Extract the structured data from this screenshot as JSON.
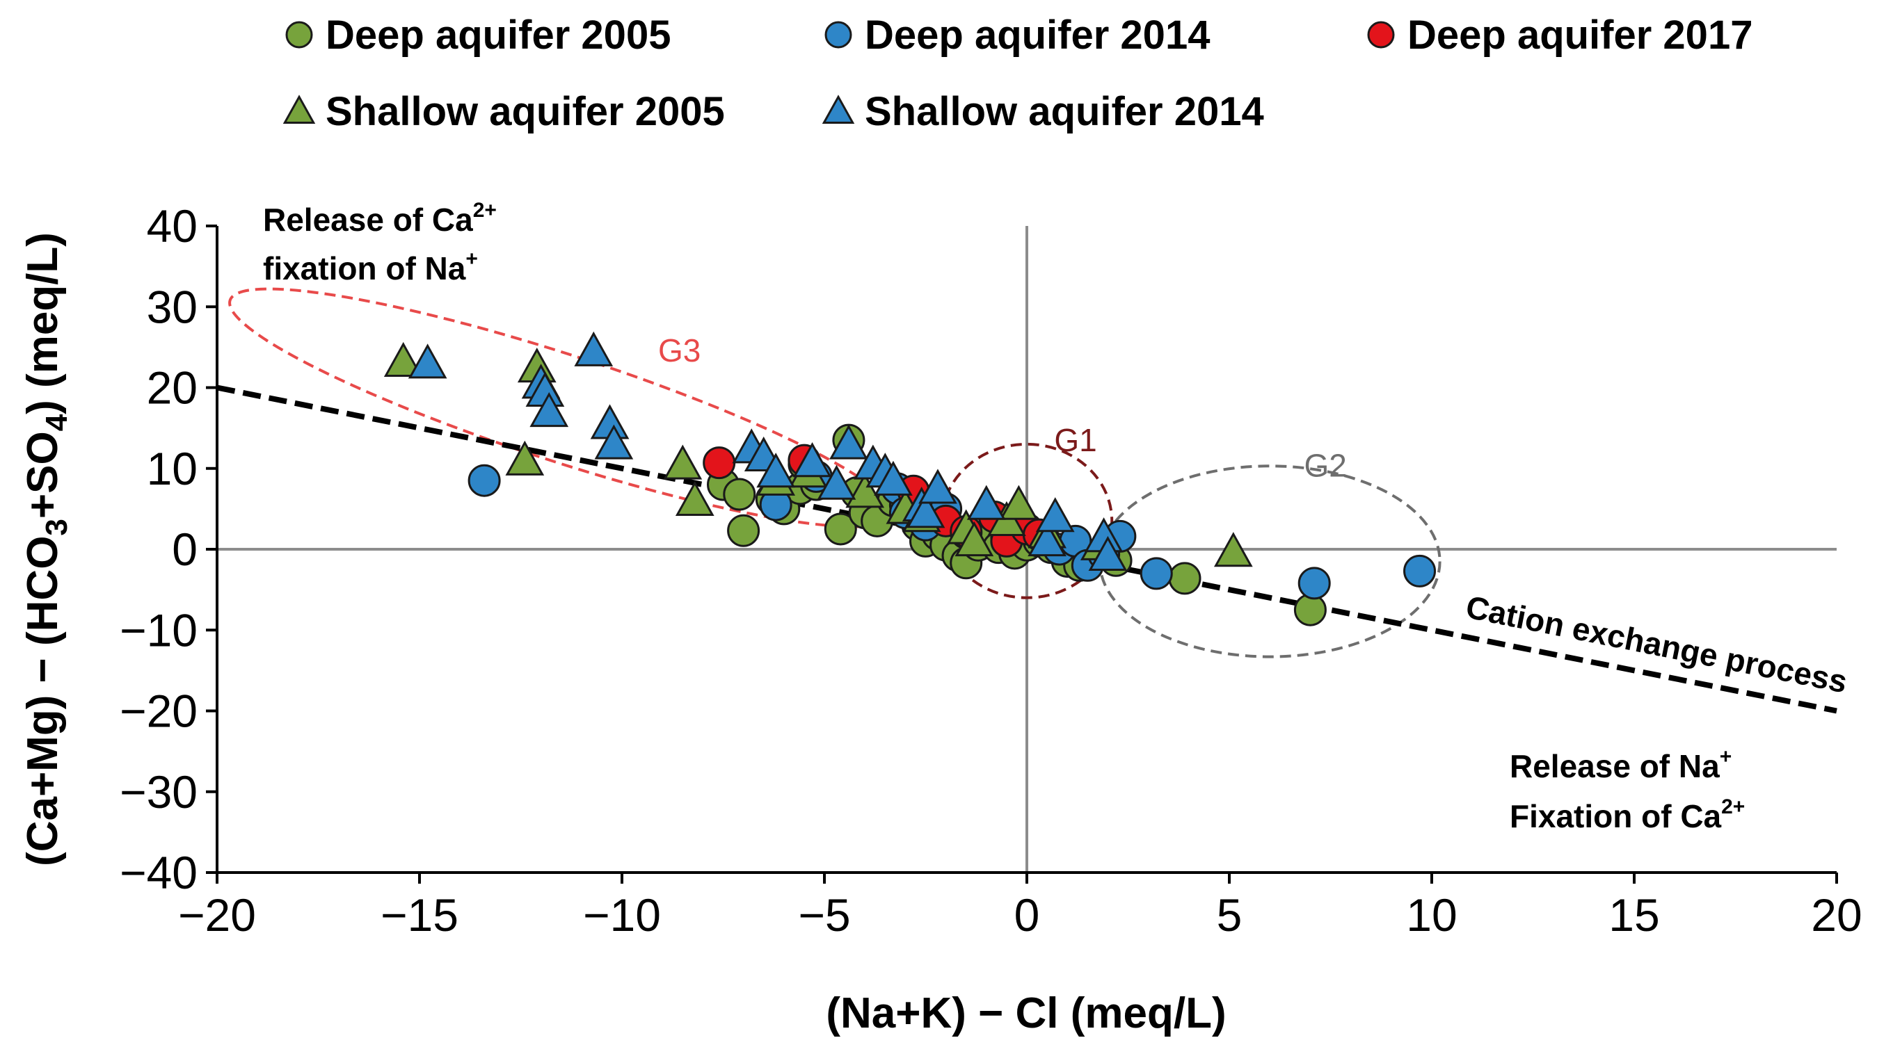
{
  "chart_data": {
    "type": "scatter",
    "xlabel": "(Na+K) − Cl (meq/L)",
    "ylabel_parts": [
      "(Ca+Mg) − (HCO",
      "3",
      "+SO",
      "4",
      ") (meq/L)"
    ],
    "xlim": [
      -20,
      20
    ],
    "ylim": [
      -40,
      40
    ],
    "x_ticks": [
      -20,
      -15,
      -10,
      -5,
      0,
      5,
      10,
      15,
      20
    ],
    "y_ticks": [
      -40,
      -30,
      -20,
      -10,
      0,
      10,
      20,
      30,
      40
    ],
    "x_tick_labels": [
      "−20",
      "−15",
      "−10",
      "−5",
      "0",
      "5",
      "10",
      "15",
      "20"
    ],
    "y_tick_labels": [
      "−40",
      "−30",
      "−20",
      "−10",
      "0",
      "10",
      "20",
      "30",
      "40"
    ],
    "grid": false,
    "legend_position": "top",
    "series": [
      {
        "name": "Deep aquifer 2005",
        "marker": "circle",
        "color": "#77a33c",
        "points": [
          [
            -7.5,
            8
          ],
          [
            -7.1,
            6.8
          ],
          [
            -7,
            2.3
          ],
          [
            -6.3,
            6.2
          ],
          [
            -6,
            5
          ],
          [
            -5.6,
            7.5
          ],
          [
            -5.5,
            10.5
          ],
          [
            -5.2,
            8
          ],
          [
            -4.6,
            2.5
          ],
          [
            -4.4,
            13.5
          ],
          [
            -4.2,
            7
          ],
          [
            -4,
            4.5
          ],
          [
            -3.7,
            3.5
          ],
          [
            -3.3,
            6
          ],
          [
            -3,
            5.5
          ],
          [
            -2.7,
            3
          ],
          [
            -2.5,
            1
          ],
          [
            -2.2,
            1.8
          ],
          [
            -2,
            0.5
          ],
          [
            -1.7,
            -0.8
          ],
          [
            -1.5,
            -1.7
          ],
          [
            -1.2,
            0.5
          ],
          [
            -1,
            1.5
          ],
          [
            -0.7,
            0.2
          ],
          [
            -0.5,
            2
          ],
          [
            -0.3,
            -0.5
          ],
          [
            0,
            0.5
          ],
          [
            0.3,
            1
          ],
          [
            0.6,
            0.2
          ],
          [
            1,
            -1.5
          ],
          [
            1.3,
            -2
          ],
          [
            1.8,
            -0.5
          ],
          [
            2.2,
            -1.4
          ],
          [
            3.9,
            -3.6
          ],
          [
            7,
            -7.5
          ]
        ]
      },
      {
        "name": "Deep aquifer 2014",
        "marker": "circle",
        "color": "#2e86c8",
        "points": [
          [
            -13.4,
            8.5
          ],
          [
            -6.2,
            5.5
          ],
          [
            -5.2,
            9
          ],
          [
            -3.2,
            7.5
          ],
          [
            -3,
            4.5
          ],
          [
            -2.5,
            3
          ],
          [
            -2,
            5
          ],
          [
            -1.5,
            2
          ],
          [
            -0.5,
            1.5
          ],
          [
            0.4,
            1.5
          ],
          [
            0.8,
            0
          ],
          [
            1.2,
            1
          ],
          [
            1.5,
            -2
          ],
          [
            1.9,
            -0.6
          ],
          [
            2.3,
            1.6
          ],
          [
            3.2,
            -3
          ],
          [
            7.1,
            -4.2
          ],
          [
            9.7,
            -2.7
          ]
        ]
      },
      {
        "name": "Deep aquifer 2017",
        "marker": "circle",
        "color": "#e3141b",
        "points": [
          [
            -7.6,
            10.7
          ],
          [
            -5.5,
            11
          ],
          [
            -2.8,
            7.2
          ],
          [
            -2,
            3.5
          ],
          [
            -1.5,
            2.2
          ],
          [
            -0.8,
            4
          ],
          [
            -0.5,
            1
          ],
          [
            0,
            2.5
          ],
          [
            0.3,
            1.8
          ]
        ]
      },
      {
        "name": "Shallow aquifer 2005",
        "marker": "triangle",
        "color": "#77a33c",
        "points": [
          [
            -15.4,
            23.2
          ],
          [
            -12.4,
            11
          ],
          [
            -12.1,
            22.5
          ],
          [
            -8.5,
            10.5
          ],
          [
            -8.2,
            6
          ],
          [
            -6.2,
            8.5
          ],
          [
            -5.4,
            9.5
          ],
          [
            -4,
            7
          ],
          [
            -3,
            5
          ],
          [
            -2.6,
            4
          ],
          [
            -1.5,
            2.5
          ],
          [
            -1.3,
            1
          ],
          [
            -0.5,
            3.5
          ],
          [
            -0.2,
            5.5
          ],
          [
            0.5,
            2
          ],
          [
            1.8,
            0.5
          ],
          [
            5.1,
            -0.3
          ]
        ]
      },
      {
        "name": "Shallow aquifer 2014",
        "marker": "triangle",
        "color": "#2e86c8",
        "points": [
          [
            -14.8,
            23
          ],
          [
            -12,
            20.5
          ],
          [
            -11.9,
            19.5
          ],
          [
            -11.8,
            17
          ],
          [
            -10.7,
            24.5
          ],
          [
            -10.3,
            15.5
          ],
          [
            -10.2,
            13
          ],
          [
            -6.8,
            12.5
          ],
          [
            -6.5,
            11.5
          ],
          [
            -6.2,
            9.5
          ],
          [
            -5.3,
            10.8
          ],
          [
            -4.7,
            8
          ],
          [
            -4.4,
            13
          ],
          [
            -3.8,
            10.5
          ],
          [
            -3.5,
            9.5
          ],
          [
            -3.3,
            8.5
          ],
          [
            -2.6,
            5.3
          ],
          [
            -2.5,
            4.5
          ],
          [
            -2.2,
            7.5
          ],
          [
            -1,
            5.5
          ],
          [
            0.5,
            1
          ],
          [
            0.7,
            4
          ],
          [
            1.9,
            1.5
          ],
          [
            2,
            -0.8
          ]
        ]
      }
    ],
    "trend_line": {
      "label": "Cation exchange process",
      "x": [
        -20,
        20
      ],
      "y": [
        20,
        -20
      ],
      "color": "#000000",
      "style": "dashed"
    },
    "groups": [
      {
        "label": "G1",
        "color": "#7b1a1a",
        "center": [
          0,
          3.5
        ],
        "radius_x": 2.1,
        "radius_y": 9.5,
        "rotation_deg": 0
      },
      {
        "label": "G2",
        "color": "#6e6e6e",
        "center": [
          6,
          -1.5
        ],
        "radius_x": 4.2,
        "radius_y": 11.8,
        "rotation_deg": 0
      },
      {
        "label": "G3",
        "color": "#e84a4a",
        "center": [
          -11.5,
          17.5
        ],
        "radius_x": 8.6,
        "radius_y": 6.6,
        "rotation_deg": 18
      }
    ],
    "annotations": [
      {
        "lines": [
          {
            "text": "Release of Ca",
            "sup": "2+"
          },
          {
            "text": "fixation of Na",
            "sup": "+"
          }
        ],
        "position": "top-left"
      },
      {
        "lines": [
          {
            "text": "Release of Na",
            "sup": "+"
          },
          {
            "text": "Fixation of Ca",
            "sup": "2+"
          }
        ],
        "position": "bottom-right"
      }
    ]
  }
}
